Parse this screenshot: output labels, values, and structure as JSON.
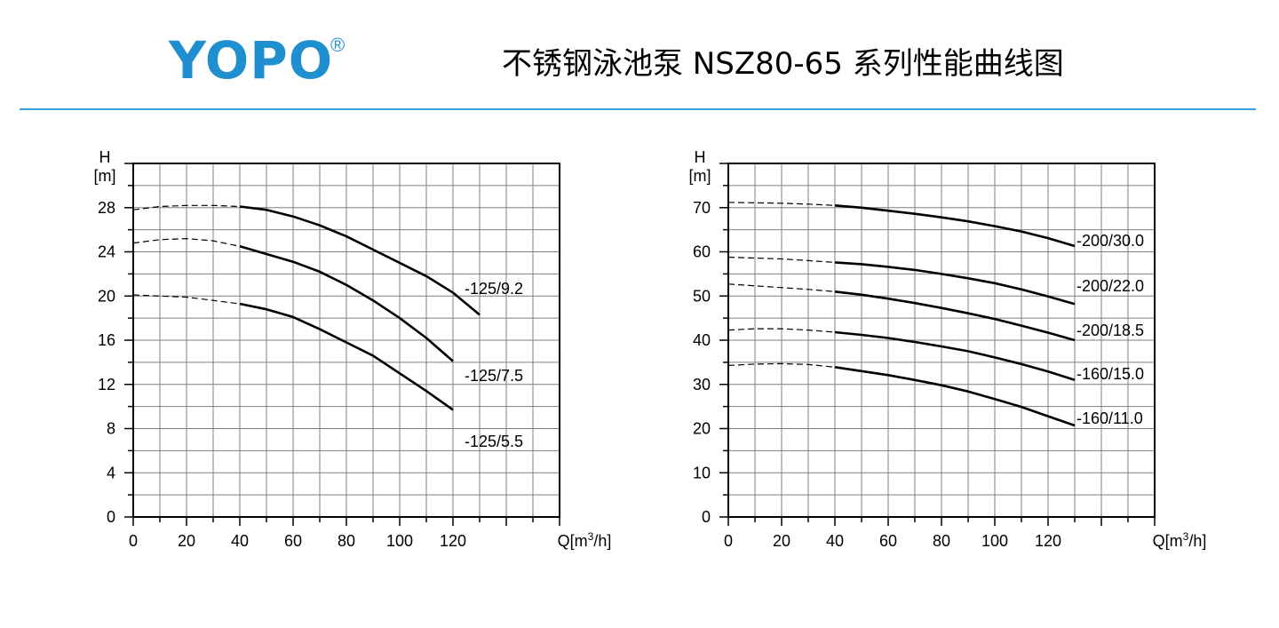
{
  "header": {
    "logo_text": "YOPO",
    "logo_mark": "®",
    "title": "不锈钢泳池泵 NSZ80-65 系列性能曲线图"
  },
  "colors": {
    "brand": "#1f8fd0",
    "rule": "#3aa0d8",
    "grid": "#7f7f7f",
    "curve": "#000000"
  },
  "chart_data": [
    {
      "type": "line",
      "ylabel_1": "H",
      "ylabel_2": "[m]",
      "xlabel_1": "Q[m",
      "xlabel_sup": "3",
      "xlabel_2": "/h]",
      "xlim": [
        0,
        160
      ],
      "ylim": [
        0,
        32
      ],
      "xticks": [
        0,
        20,
        40,
        60,
        80,
        100,
        120
      ],
      "yticks": [
        0,
        4,
        8,
        12,
        16,
        20,
        24,
        28
      ],
      "series": [
        {
          "name": "-125/9.2",
          "x": [
            0,
            10,
            20,
            30,
            40,
            50,
            60,
            70,
            80,
            90,
            100,
            110,
            120,
            130
          ],
          "y": [
            27.8,
            28.1,
            28.2,
            28.2,
            28.1,
            27.8,
            27.2,
            26.4,
            25.4,
            24.2,
            23.0,
            21.8,
            20.3,
            18.3
          ]
        },
        {
          "name": "-125/7.5",
          "x": [
            0,
            10,
            20,
            30,
            40,
            50,
            60,
            70,
            80,
            90,
            100,
            110,
            120
          ],
          "y": [
            24.8,
            25.1,
            25.2,
            25.0,
            24.5,
            23.8,
            23.1,
            22.2,
            21.0,
            19.6,
            18.0,
            16.2,
            14.1
          ]
        },
        {
          "name": "-125/5.5",
          "x": [
            0,
            10,
            20,
            30,
            40,
            50,
            60,
            70,
            80,
            90,
            100,
            110,
            120
          ],
          "y": [
            20.1,
            20.0,
            19.9,
            19.6,
            19.3,
            18.8,
            18.1,
            17.0,
            15.8,
            14.6,
            13.0,
            11.4,
            9.7
          ]
        }
      ]
    },
    {
      "type": "line",
      "ylabel_1": "H",
      "ylabel_2": "[m]",
      "xlabel_1": "Q[m",
      "xlabel_sup": "3",
      "xlabel_2": "/h]",
      "xlim": [
        0,
        160
      ],
      "ylim": [
        0,
        80
      ],
      "xticks": [
        0,
        20,
        40,
        60,
        80,
        100,
        120
      ],
      "yticks": [
        0,
        10,
        20,
        30,
        40,
        50,
        60,
        70
      ],
      "series": [
        {
          "name": "-200/30.0",
          "x": [
            0,
            10,
            20,
            30,
            40,
            50,
            60,
            70,
            80,
            90,
            100,
            110,
            120,
            130
          ],
          "y": [
            71.2,
            71.1,
            71.0,
            70.8,
            70.5,
            70.0,
            69.3,
            68.6,
            67.8,
            66.9,
            65.8,
            64.6,
            63.1,
            61.3
          ]
        },
        {
          "name": "-200/22.0",
          "x": [
            0,
            10,
            20,
            30,
            40,
            50,
            60,
            70,
            80,
            90,
            100,
            110,
            120,
            130
          ],
          "y": [
            58.8,
            58.6,
            58.4,
            58.0,
            57.6,
            57.2,
            56.6,
            55.9,
            55.0,
            54.0,
            52.9,
            51.5,
            49.9,
            48.2
          ]
        },
        {
          "name": "-200/18.5",
          "x": [
            0,
            10,
            20,
            30,
            40,
            50,
            60,
            70,
            80,
            90,
            100,
            110,
            120,
            130
          ],
          "y": [
            52.7,
            52.3,
            51.9,
            51.5,
            51.0,
            50.3,
            49.4,
            48.4,
            47.3,
            46.1,
            44.8,
            43.3,
            41.7,
            40.0
          ]
        },
        {
          "name": "-160/15.0",
          "x": [
            0,
            10,
            20,
            30,
            40,
            50,
            60,
            70,
            80,
            90,
            100,
            110,
            120,
            130
          ],
          "y": [
            42.3,
            42.6,
            42.6,
            42.3,
            41.8,
            41.2,
            40.5,
            39.6,
            38.6,
            37.5,
            36.1,
            34.6,
            32.9,
            31.0
          ]
        },
        {
          "name": "-160/11.0",
          "x": [
            0,
            10,
            20,
            30,
            40,
            50,
            60,
            70,
            80,
            90,
            100,
            110,
            120,
            130
          ],
          "y": [
            34.3,
            34.6,
            34.7,
            34.5,
            33.9,
            33.0,
            32.1,
            31.0,
            29.8,
            28.4,
            26.7,
            24.9,
            22.8,
            20.7
          ]
        }
      ]
    }
  ]
}
